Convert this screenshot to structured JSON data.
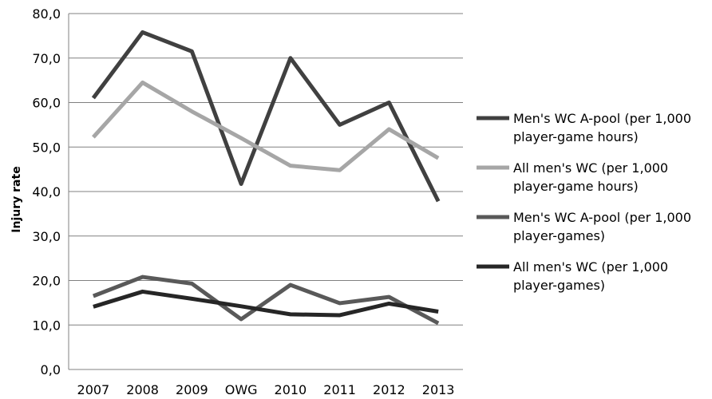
{
  "chart_data": {
    "type": "line",
    "title": "",
    "xlabel": "",
    "ylabel": "Injury rate",
    "ylim": [
      0,
      80
    ],
    "yticks": [
      "0,0",
      "10,0",
      "20,0",
      "30,0",
      "40,0",
      "50,0",
      "60,0",
      "70,0",
      "80,0"
    ],
    "grid": "horizontal",
    "legend_position": "right",
    "categories": [
      "2007",
      "2008",
      "2009",
      "OWG",
      "2010",
      "2011",
      "2012",
      "2013"
    ],
    "series": [
      {
        "name_lines": [
          "Men's WC A-pool (per 1,000",
          "player-game hours)"
        ],
        "color": "#404040",
        "values": [
          61.0,
          75.8,
          71.5,
          41.7,
          70.0,
          55.0,
          60.0,
          37.8
        ]
      },
      {
        "name_lines": [
          "All men's WC (per 1,000",
          "player-game hours)"
        ],
        "color": "#a6a6a6",
        "values": [
          52.2,
          64.5,
          58.0,
          52.0,
          45.8,
          44.8,
          54.0,
          47.5
        ]
      },
      {
        "name_lines": [
          "Men's WC A-pool (per 1,000",
          "player-games)"
        ],
        "color": "#595959",
        "values": [
          16.5,
          20.8,
          19.3,
          11.3,
          19.0,
          14.9,
          16.3,
          10.4
        ]
      },
      {
        "name_lines": [
          "All men's WC (per 1,000",
          "player-games)"
        ],
        "color": "#262626",
        "values": [
          14.1,
          17.5,
          15.9,
          14.2,
          12.4,
          12.2,
          14.8,
          13.0
        ]
      }
    ]
  }
}
